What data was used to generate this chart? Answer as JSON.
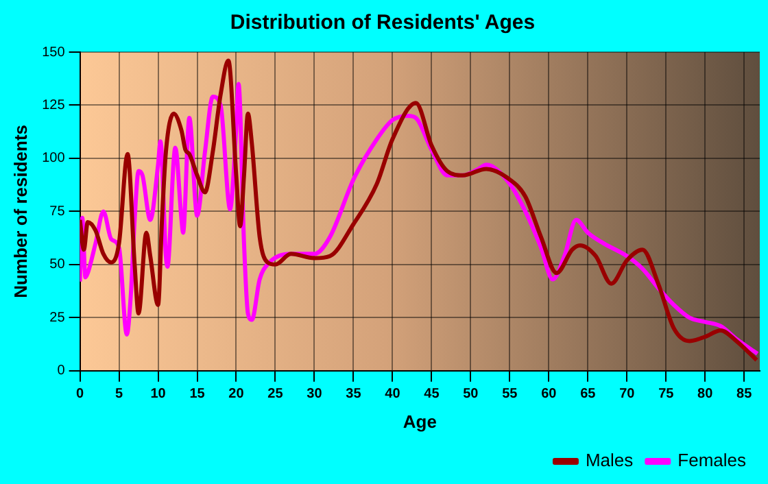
{
  "chart_data": {
    "type": "line",
    "title": "Distribution of Residents' Ages",
    "xlabel": "Age",
    "ylabel": "Number of residents",
    "xlim": [
      0,
      87
    ],
    "xticks": [
      0,
      5,
      10,
      15,
      20,
      25,
      30,
      35,
      40,
      45,
      50,
      55,
      60,
      65,
      70,
      75,
      80,
      85
    ],
    "ylim": [
      0,
      150
    ],
    "yticks": [
      0,
      25,
      50,
      75,
      100,
      125,
      150
    ],
    "grid": true,
    "legend": "bottom right",
    "marker": "none",
    "line_style": "solid",
    "series": [
      {
        "name": "Males",
        "color": "#990000",
        "x": [
          0,
          0.5,
          1,
          2,
          3,
          4,
          5,
          6.1,
          7,
          7.5,
          8.5,
          9,
          10,
          10.5,
          11,
          12,
          13,
          13.5,
          14,
          15,
          16,
          17,
          18,
          19,
          20,
          20.5,
          21,
          21.5,
          22,
          23,
          24,
          25,
          27,
          30,
          32,
          35,
          38,
          40,
          43,
          45,
          47,
          49,
          52,
          55,
          57,
          59,
          61,
          63,
          64,
          66,
          68,
          70,
          72,
          74,
          76,
          78,
          80,
          82,
          84,
          86.6
        ],
        "values": [
          71,
          57,
          70,
          66,
          55,
          51,
          60,
          102,
          50,
          27,
          65,
          54,
          31,
          71,
          103,
          121,
          113,
          104,
          102,
          92,
          84,
          103,
          130,
          146,
          92,
          68,
          92,
          121,
          107,
          63,
          51,
          50,
          55,
          53,
          54,
          69,
          88,
          109,
          126,
          106,
          94,
          92,
          95,
          90,
          82,
          63,
          46,
          57,
          59,
          54,
          41,
          52,
          57,
          41,
          20,
          14,
          16,
          19,
          14,
          5
        ]
      },
      {
        "name": "Females",
        "color": "#ff00ff",
        "x": [
          0,
          0.3,
          0.7,
          1,
          2,
          3,
          4,
          5,
          6,
          6.5,
          7,
          7.5,
          8,
          9,
          10,
          10.3,
          11,
          11.2,
          12,
          12.2,
          13,
          13.2,
          14,
          15,
          16,
          17,
          18,
          19,
          19.2,
          20,
          20.3,
          21,
          21.5,
          22,
          23,
          24,
          27,
          30,
          32,
          35,
          38,
          40,
          42,
          43,
          45,
          47,
          49,
          51,
          52,
          55,
          57,
          59,
          60.5,
          62,
          63.5,
          65,
          67,
          70,
          72,
          74,
          76,
          78,
          80,
          82,
          84,
          86.7
        ],
        "values": [
          42,
          72,
          44,
          46,
          60,
          75,
          62,
          58,
          17,
          35,
          71,
          94,
          92,
          71,
          97,
          108,
          54,
          49,
          99,
          105,
          71,
          65,
          119,
          73,
          103,
          129,
          125,
          80,
          76,
          114,
          135,
          60,
          27,
          24,
          43,
          50,
          55,
          55,
          63,
          90,
          109,
          118,
          120,
          119,
          104,
          92,
          92,
          95,
          97,
          88,
          75,
          58,
          43,
          54,
          71,
          65,
          60,
          54,
          48,
          39,
          31,
          25,
          23,
          21,
          15,
          8
        ]
      }
    ]
  }
}
